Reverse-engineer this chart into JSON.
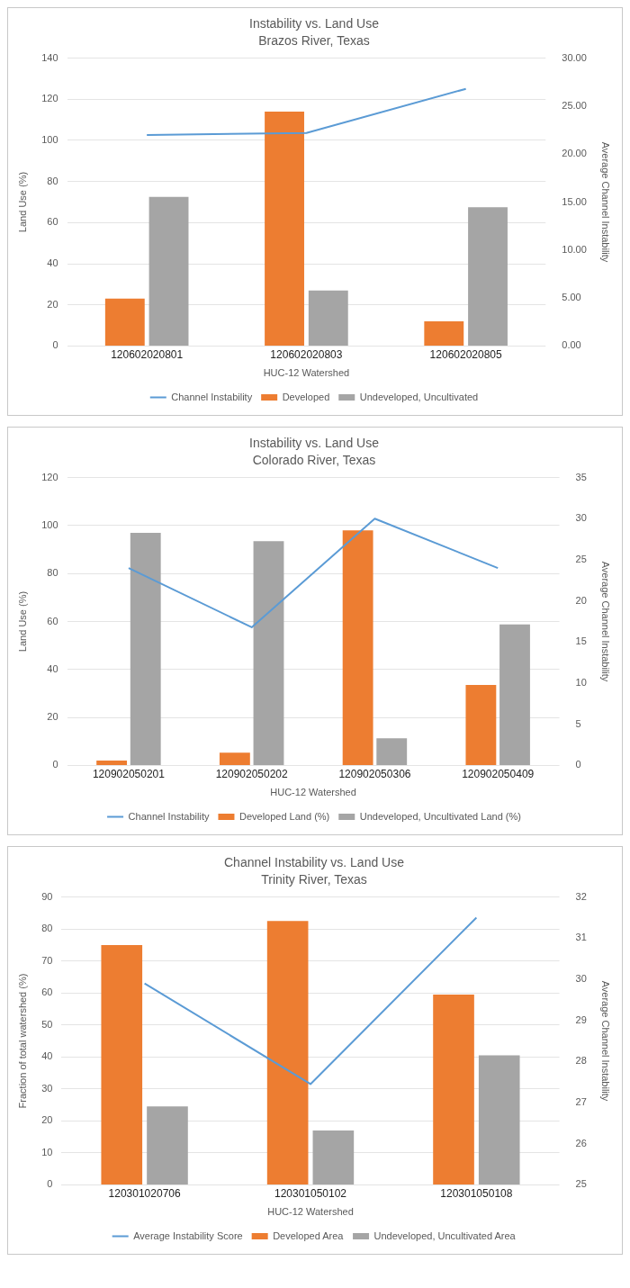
{
  "chart_data": [
    {
      "type": "bar",
      "title": "Instability vs. Land Use",
      "subtitle": "Brazos River, Texas",
      "xlabel": "HUC-12 Watershed",
      "ylabel": "Land Use (%)",
      "y2label": "Average Channel Instability",
      "categories": [
        "120602020801",
        "120602020803",
        "120602020805"
      ],
      "series": [
        {
          "name": "Developed",
          "color": "#ed7d31",
          "values": [
            23,
            114,
            12
          ]
        },
        {
          "name": "Undeveloped, Uncultivated",
          "color": "#a5a5a5",
          "values": [
            72.5,
            27,
            67.5
          ]
        },
        {
          "name": "Channel Instability",
          "type": "line",
          "axis": "y2",
          "color": "#5b9bd5",
          "values": [
            22,
            22.2,
            26.8
          ]
        }
      ],
      "ylim": [
        0,
        140
      ],
      "yticks": [
        0,
        20,
        40,
        60,
        80,
        100,
        120,
        140
      ],
      "y2lim": [
        0,
        30
      ],
      "y2ticks": [
        {
          "value": 0,
          "label": "0.00"
        },
        {
          "value": 5,
          "label": "5.00"
        },
        {
          "value": 10,
          "label": "10.00"
        },
        {
          "value": 15,
          "label": "15.00"
        },
        {
          "value": 20,
          "label": "20.00"
        },
        {
          "value": 25,
          "label": "25.00"
        },
        {
          "value": 30,
          "label": "30.00"
        }
      ],
      "grid": "y",
      "legend": "bottom"
    },
    {
      "type": "bar",
      "title": "Instability vs. Land Use",
      "subtitle": "Colorado River, Texas",
      "xlabel": "HUC-12 Watershed",
      "ylabel": "Land Use (%)",
      "y2label": "Average Channel Instability",
      "categories": [
        "120902050201",
        "120902050202",
        "120902050306",
        "120902050409"
      ],
      "series": [
        {
          "name": "Developed Land (%)",
          "color": "#ed7d31",
          "values": [
            2,
            5.3,
            98,
            33.5
          ]
        },
        {
          "name": "Undeveloped, Uncultivated Land (%)",
          "color": "#a5a5a5",
          "values": [
            97,
            93.5,
            11.3,
            58.8
          ]
        },
        {
          "name": "Channel Instability",
          "type": "line",
          "axis": "y2",
          "color": "#5b9bd5",
          "values": [
            24,
            16.8,
            30,
            24
          ]
        }
      ],
      "ylim": [
        0,
        120
      ],
      "yticks": [
        0,
        20,
        40,
        60,
        80,
        100,
        120
      ],
      "y2lim": [
        0,
        35
      ],
      "y2ticks": [
        0,
        5,
        10,
        15,
        20,
        25,
        30,
        35
      ],
      "grid": "y",
      "legend": "bottom"
    },
    {
      "type": "bar",
      "title": "Channel Instability vs. Land Use",
      "subtitle": "Trinity River, Texas",
      "xlabel": "HUC-12 Watershed",
      "ylabel": "Fraction of total watershed (%)",
      "y2label": "Average Channel Instability",
      "categories": [
        "120301020706",
        "120301050102",
        "120301050108"
      ],
      "series": [
        {
          "name": "Developed Area",
          "color": "#ed7d31",
          "values": [
            75,
            82.5,
            59.5
          ]
        },
        {
          "name": "Undeveloped, Uncultivated Area",
          "color": "#a5a5a5",
          "values": [
            24.5,
            17,
            40.5
          ]
        },
        {
          "name": "Average Instability Score",
          "type": "line",
          "axis": "y2",
          "color": "#5b9bd5",
          "values": [
            29.9,
            27.45,
            31.5
          ]
        }
      ],
      "ylim": [
        0,
        90
      ],
      "yticks": [
        0,
        10,
        20,
        30,
        40,
        50,
        60,
        70,
        80,
        90
      ],
      "y2lim": [
        25,
        32
      ],
      "y2ticks": [
        25,
        26,
        27,
        28,
        29,
        30,
        31,
        32
      ],
      "grid": "y",
      "legend": "bottom"
    }
  ]
}
